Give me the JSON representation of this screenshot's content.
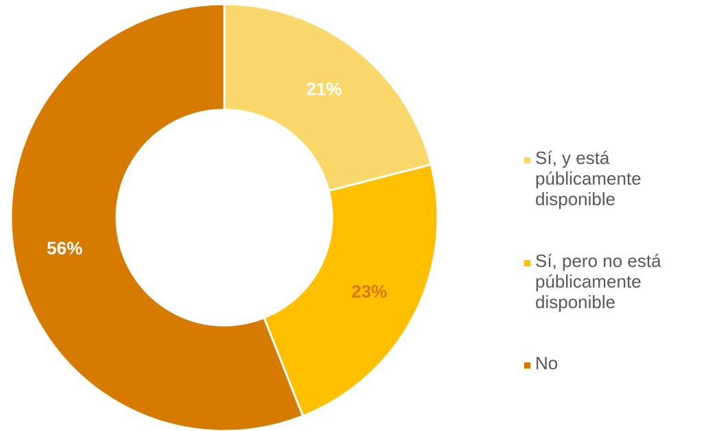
{
  "chart_data": {
    "type": "pie",
    "donut": true,
    "title": "",
    "slices": [
      {
        "label": "Sí, y está públicamente disponible",
        "value": 21,
        "display": "21%",
        "color": "#FAD96A",
        "label_color": "#FFFFFF"
      },
      {
        "label": "Sí, pero no está públicamente disponible",
        "value": 23,
        "display": "23%",
        "color": "#FFC000",
        "label_color": "#D67A00"
      },
      {
        "label": "No",
        "value": 56,
        "display": "56%",
        "color": "#D67A00",
        "label_color": "#FFFFFF"
      }
    ],
    "legend_position": "right"
  }
}
